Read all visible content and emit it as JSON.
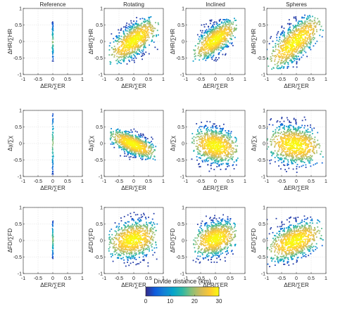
{
  "chart_data": {
    "type": "scatter",
    "columns": [
      "Reference",
      "Rotating",
      "Inclined",
      "Spheres"
    ],
    "xlabel": "ΔER/∑ER",
    "xlim": [
      -1,
      1
    ],
    "ylim": [
      -1,
      1
    ],
    "xticks": [
      -1,
      -0.5,
      0,
      0.5,
      1
    ],
    "yticks": [
      -1,
      -0.5,
      0,
      0.5,
      1
    ],
    "tick_labels": [
      "-1",
      "-0.5",
      "0",
      "0.5",
      "1"
    ],
    "grid": true,
    "rows": [
      {
        "ylabel": "ΔHR/∑HR",
        "panels": [
          {
            "column": "Reference",
            "shape": "vertical",
            "x_center": 0,
            "x_spread": 0.02,
            "y_range": [
              -0.6,
              0.6
            ],
            "slope": 0
          },
          {
            "column": "Rotating",
            "shape": "cloud",
            "x_range": [
              -0.85,
              0.85
            ],
            "y_range": [
              -0.7,
              0.75
            ],
            "slope": 0.55,
            "core_spread": 0.28
          },
          {
            "column": "Inclined",
            "shape": "cloud",
            "x_range": [
              -0.75,
              0.75
            ],
            "y_range": [
              -0.6,
              0.7
            ],
            "slope": 0.55,
            "core_spread": 0.3
          },
          {
            "column": "Spheres",
            "shape": "cloud",
            "x_range": [
              -1.0,
              0.9
            ],
            "y_range": [
              -0.85,
              0.8
            ],
            "slope": 0.65,
            "core_spread": 0.32
          }
        ]
      },
      {
        "ylabel": "Δχ/∑χ",
        "panels": [
          {
            "column": "Reference",
            "shape": "vertical",
            "x_center": 0,
            "x_spread": 0.02,
            "y_range": [
              -0.95,
              0.95
            ],
            "slope": 0
          },
          {
            "column": "Rotating",
            "shape": "cloud",
            "x_range": [
              -0.8,
              0.75
            ],
            "y_range": [
              -0.5,
              0.45
            ],
            "slope": -0.35,
            "core_spread": 0.12
          },
          {
            "column": "Inclined",
            "shape": "cloud",
            "x_range": [
              -0.8,
              0.8
            ],
            "y_range": [
              -0.85,
              0.7
            ],
            "slope": -0.15,
            "core_spread": 0.1
          },
          {
            "column": "Spheres",
            "shape": "cloud",
            "x_range": [
              -1.0,
              0.9
            ],
            "y_range": [
              -0.9,
              0.8
            ],
            "slope": -0.1,
            "core_spread": 0.12
          }
        ]
      },
      {
        "ylabel": "ΔFD/∑FD",
        "panels": [
          {
            "column": "Reference",
            "shape": "vertical",
            "x_center": 0,
            "x_spread": 0.02,
            "y_range": [
              -0.55,
              0.6
            ],
            "slope": 0
          },
          {
            "column": "Rotating",
            "shape": "cloud",
            "x_range": [
              -0.85,
              0.8
            ],
            "y_range": [
              -0.8,
              0.85
            ],
            "slope": 0.15,
            "core_spread": 0.45
          },
          {
            "column": "Inclined",
            "shape": "cloud",
            "x_range": [
              -0.75,
              0.75
            ],
            "y_range": [
              -0.7,
              0.8
            ],
            "slope": 0.2,
            "core_spread": 0.35
          },
          {
            "column": "Spheres",
            "shape": "cloud",
            "x_range": [
              -1.0,
              0.9
            ],
            "y_range": [
              -0.8,
              0.75
            ],
            "slope": 0.3,
            "core_spread": 0.35
          }
        ]
      }
    ],
    "colorbar": {
      "label": "Divide distance (km)",
      "range": [
        0,
        30
      ],
      "ticks": [
        0,
        10,
        20,
        30
      ],
      "tick_labels": [
        "0",
        "10",
        "20",
        "30"
      ],
      "colormap": [
        "#352a87",
        "#0f5cdd",
        "#1481d6",
        "#06a4ca",
        "#2eb7a4",
        "#87bf77",
        "#d1bb59",
        "#fec832",
        "#f9fb0e"
      ]
    }
  }
}
